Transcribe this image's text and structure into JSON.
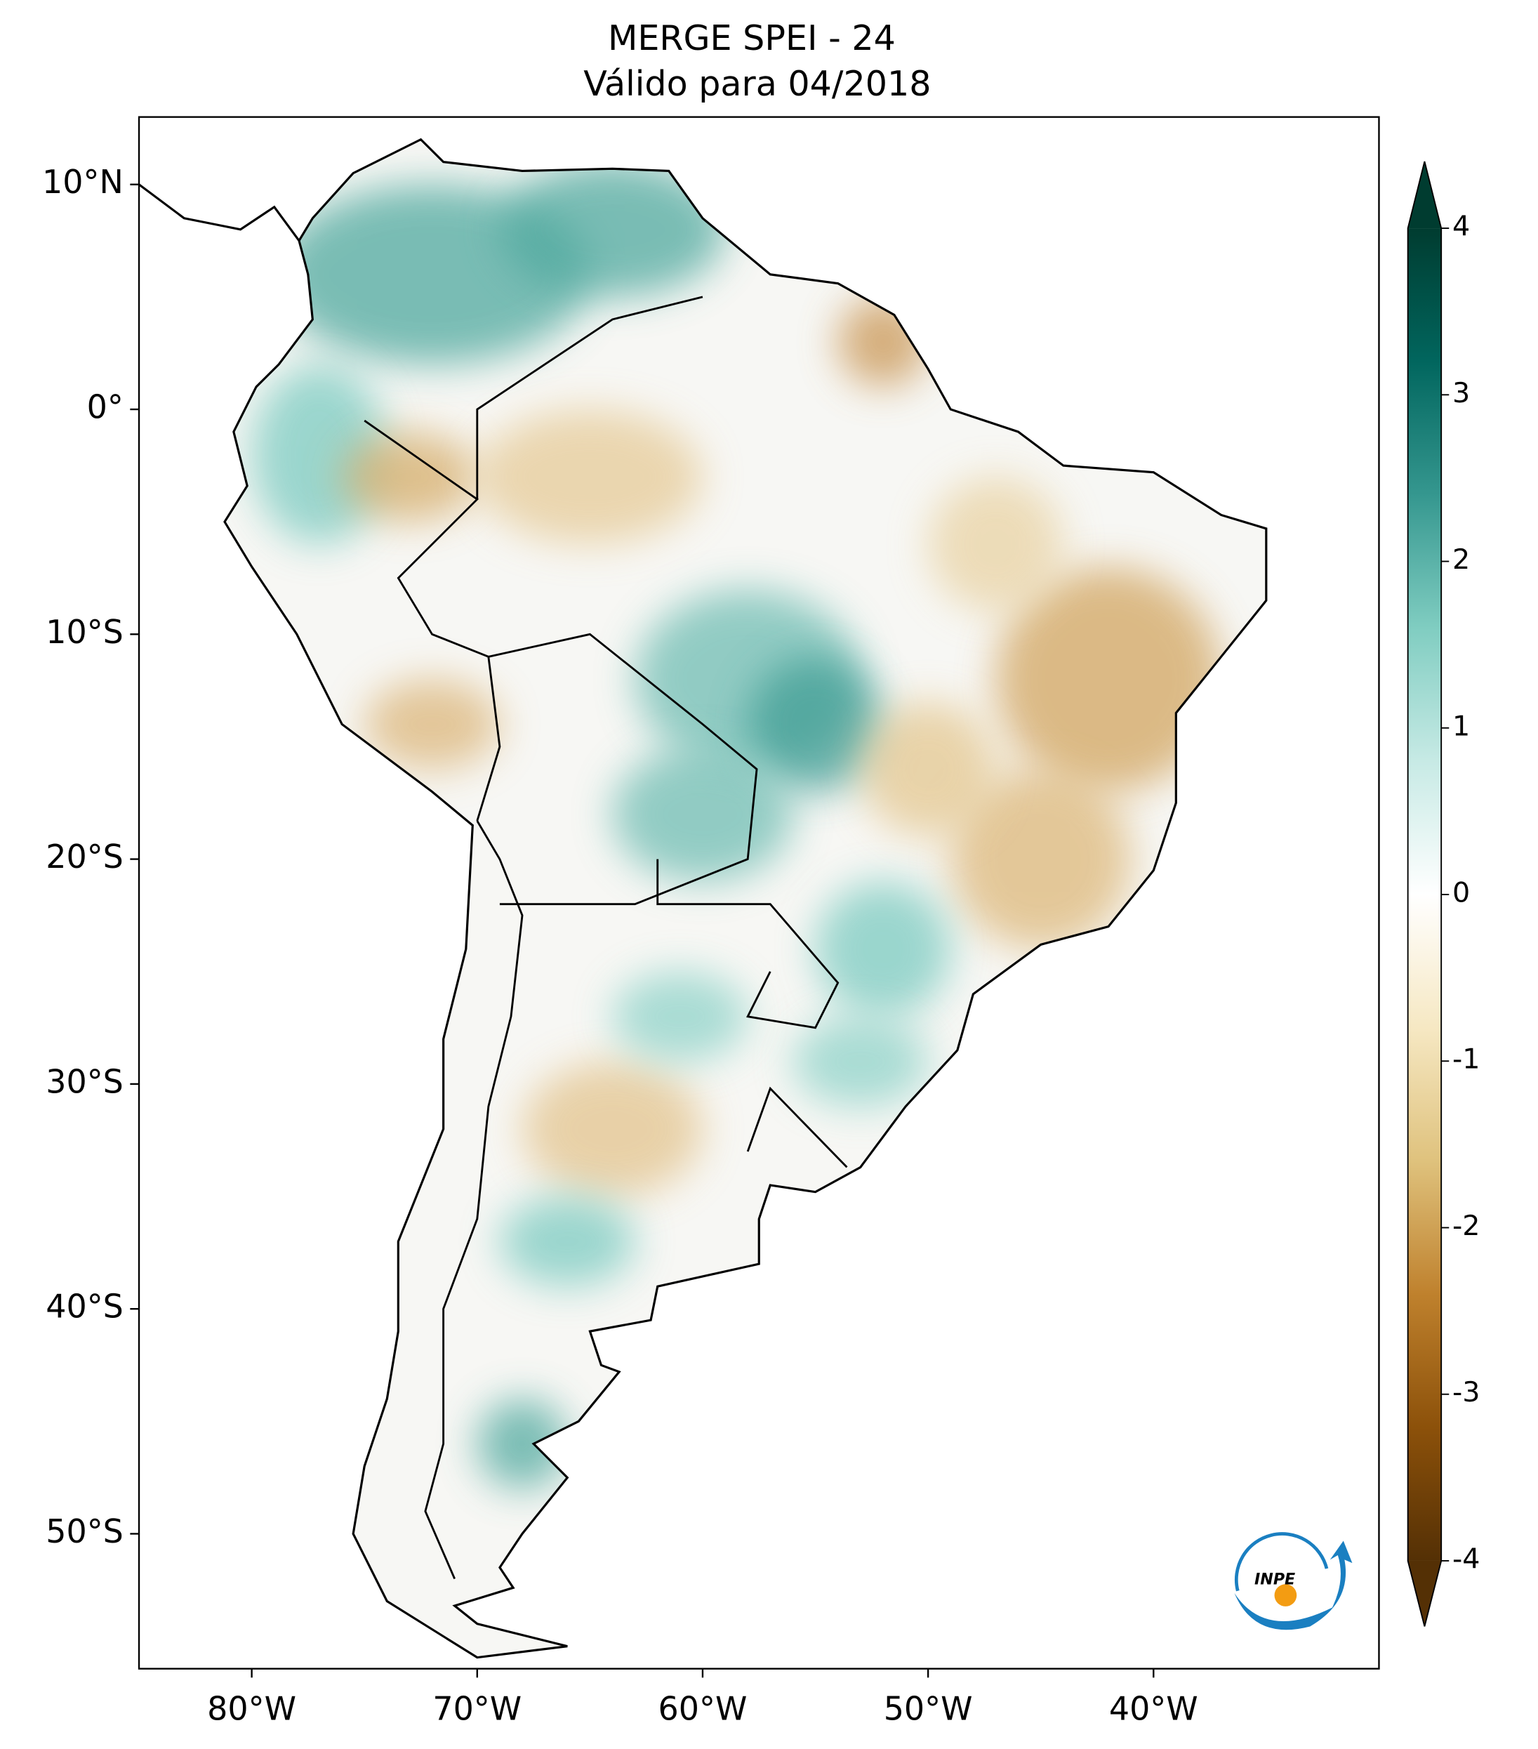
{
  "title": [
    "MERGE   SPEI - 24",
    "Válido para 04/2018"
  ],
  "map": {
    "xlim": [
      -85,
      -30
    ],
    "xticks": [
      {
        "value": -80,
        "label": "80°W"
      },
      {
        "value": -70,
        "label": "70°W"
      },
      {
        "value": -60,
        "label": "60°W"
      },
      {
        "value": -50,
        "label": "50°W"
      },
      {
        "value": -40,
        "label": "40°W"
      }
    ],
    "ylim": [
      -56,
      13
    ],
    "yticks": [
      {
        "value": 10,
        "label": "10°N"
      },
      {
        "value": 0,
        "label": "0°"
      },
      {
        "value": -10,
        "label": "10°S"
      },
      {
        "value": -20,
        "label": "20°S"
      },
      {
        "value": -30,
        "label": "30°S"
      },
      {
        "value": -40,
        "label": "40°S"
      },
      {
        "value": -50,
        "label": "50°S"
      }
    ]
  },
  "colorbar": {
    "lim": [
      -4,
      4
    ],
    "ticks": [
      -4,
      -3,
      -2,
      -1,
      0,
      1,
      2,
      3,
      4
    ],
    "colormap": "BrBG",
    "extend": "both"
  },
  "logo": "INPE"
}
